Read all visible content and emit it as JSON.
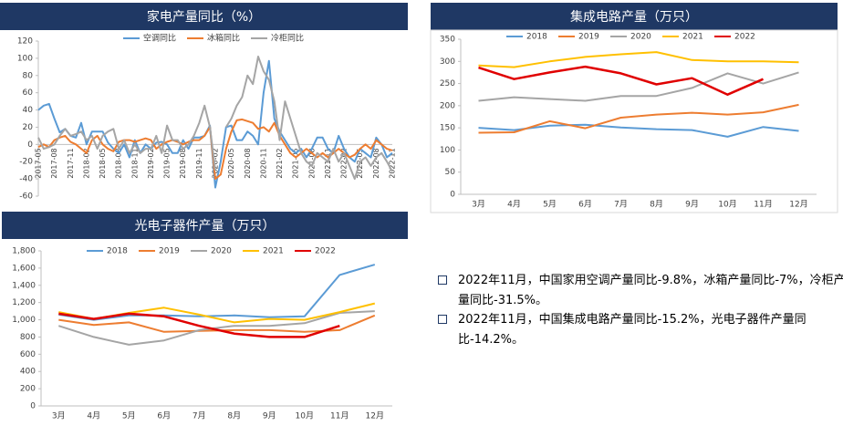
{
  "chart_data": [
    {
      "type": "line",
      "title": "家电产量同比（%）",
      "categories": [
        "2017-05",
        null,
        null,
        "2017-08",
        null,
        null,
        "2017-11",
        null,
        null,
        "2018-02",
        null,
        null,
        "2018-05",
        null,
        null,
        "2018-08",
        null,
        null,
        "2018-11",
        null,
        null,
        "2019-02",
        null,
        null,
        "2019-05",
        null,
        null,
        "2019-08",
        null,
        null,
        "2019-11",
        null,
        null,
        "2020-02",
        null,
        null,
        "2020-05",
        null,
        null,
        "2020-08",
        null,
        null,
        "2020-11",
        null,
        null,
        "2021-02",
        null,
        null,
        "2021-05",
        null,
        null,
        "2021-08",
        null,
        null,
        "2021-11",
        null,
        null,
        "2022-02",
        null,
        null,
        "2022-05",
        null,
        null,
        "2022-08",
        null,
        null,
        "2022-11"
      ],
      "ylim": [
        -60,
        120
      ],
      "yticks": [
        -60,
        -40,
        -20,
        0,
        20,
        40,
        60,
        80,
        100,
        120
      ],
      "legend": "top",
      "series": [
        {
          "name": "空调同比",
          "color": "#5b9bd5",
          "values": [
            40,
            45,
            47,
            30,
            14,
            18,
            10,
            8,
            25,
            0,
            15,
            15,
            15,
            2,
            -5,
            -10,
            0,
            -15,
            5,
            -10,
            0,
            -5,
            2,
            3,
            0,
            -10,
            -10,
            5,
            -5,
            8,
            8,
            10,
            22,
            -50,
            -20,
            20,
            22,
            5,
            5,
            15,
            10,
            0,
            60,
            97,
            30,
            15,
            5,
            -5,
            -10,
            -5,
            -15,
            -5,
            8,
            8,
            -5,
            -10,
            10,
            -5,
            -15,
            -20,
            -5,
            -10,
            -15,
            8,
            0,
            -15,
            -9.8
          ]
        },
        {
          "name": "冰箱同比",
          "color": "#ed7d31",
          "values": [
            -3,
            0,
            -3,
            5,
            8,
            10,
            3,
            0,
            -5,
            -10,
            5,
            10,
            0,
            -5,
            -8,
            3,
            5,
            5,
            3,
            5,
            7,
            5,
            -5,
            0,
            3,
            5,
            3,
            0,
            3,
            5,
            5,
            10,
            20,
            -40,
            -35,
            -5,
            15,
            28,
            29,
            27,
            25,
            18,
            20,
            15,
            25,
            10,
            0,
            -10,
            -15,
            -10,
            -5,
            -10,
            -15,
            -10,
            -15,
            -10,
            -5,
            -10,
            -15,
            -12,
            -5,
            0,
            -5,
            5,
            0,
            -5,
            -7
          ]
        },
        {
          "name": "冷柜同比",
          "color": "#a5a5a5",
          "values": [
            8,
            -5,
            -3,
            0,
            10,
            18,
            10,
            12,
            15,
            5,
            10,
            -5,
            10,
            15,
            18,
            -5,
            5,
            -10,
            0,
            -10,
            -5,
            -5,
            10,
            -10,
            22,
            5,
            5,
            -5,
            0,
            10,
            25,
            45,
            20,
            -30,
            null,
            20,
            30,
            45,
            55,
            80,
            70,
            102,
            85,
            75,
            50,
            5,
            50,
            30,
            10,
            -10,
            -20,
            -25,
            -10,
            -15,
            -20,
            -5,
            -20,
            -10,
            -25,
            -40,
            -20,
            -15,
            -25,
            -15,
            -10,
            -20,
            -31.5
          ]
        }
      ]
    },
    {
      "type": "line",
      "title": "集成电路产量（万只）",
      "categories": [
        "3月",
        "4月",
        "5月",
        "6月",
        "7月",
        "8月",
        "9月",
        "10月",
        "11月",
        "12月"
      ],
      "ylim": [
        0,
        350
      ],
      "yticks": [
        0,
        50,
        100,
        150,
        200,
        250,
        300,
        350
      ],
      "legend": "top",
      "series": [
        {
          "name": "2018",
          "color": "#5b9bd5",
          "values": [
            150,
            145,
            155,
            157,
            151,
            147,
            145,
            130,
            152,
            143
          ]
        },
        {
          "name": "2019",
          "color": "#ed7d31",
          "values": [
            139,
            140,
            165,
            149,
            173,
            180,
            184,
            180,
            185,
            202
          ]
        },
        {
          "name": "2020",
          "color": "#a5a5a5",
          "values": [
            211,
            219,
            215,
            211,
            222,
            222,
            240,
            273,
            250,
            275
          ]
        },
        {
          "name": "2021",
          "color": "#ffc000",
          "values": [
            291,
            287,
            300,
            310,
            316,
            321,
            303,
            300,
            300,
            298
          ]
        },
        {
          "name": "2022",
          "color": "#e00000",
          "values": [
            286,
            260,
            275,
            288,
            273,
            248,
            262,
            225,
            260,
            null
          ]
        }
      ]
    },
    {
      "type": "line",
      "title": "光电子器件产量（万只）",
      "categories": [
        "3月",
        "4月",
        "5月",
        "6月",
        "7月",
        "8月",
        "9月",
        "10月",
        "11月",
        "12月"
      ],
      "ylim": [
        0,
        1800
      ],
      "yticks": [
        0,
        200,
        400,
        600,
        800,
        {
          "value": 1000,
          "label": "1,000"
        },
        {
          "value": 1200,
          "label": "1,200"
        },
        {
          "value": 1400,
          "label": "1,400"
        },
        {
          "value": 1600,
          "label": "1,600"
        },
        {
          "value": 1800,
          "label": "1,800"
        }
      ],
      "legend": "top",
      "series": [
        {
          "name": "2018",
          "color": "#5b9bd5",
          "values": [
            1060,
            1000,
            1050,
            1050,
            1040,
            1050,
            1030,
            1040,
            1520,
            1640
          ]
        },
        {
          "name": "2019",
          "color": "#ed7d31",
          "values": [
            1000,
            940,
            970,
            860,
            870,
            880,
            880,
            860,
            880,
            1050
          ]
        },
        {
          "name": "2020",
          "color": "#a5a5a5",
          "values": [
            930,
            800,
            710,
            760,
            880,
            930,
            930,
            960,
            1080,
            1100
          ]
        },
        {
          "name": "2021",
          "color": "#ffc000",
          "values": [
            1090,
            1010,
            1080,
            1140,
            1060,
            970,
            1010,
            1000,
            1090,
            1190
          ]
        },
        {
          "name": "2022",
          "color": "#e00000",
          "values": [
            1070,
            1010,
            1070,
            1040,
            930,
            840,
            800,
            800,
            930,
            null
          ]
        }
      ]
    }
  ],
  "notes": [
    "2022年11月，中国家用空调产量同比-9.8%，冰箱产量同比-7%，冷柜产量同比-31.5%。",
    "2022年11月，中国集成电路产量同比-15.2%，光电子器件产量同比-14.2%。"
  ]
}
